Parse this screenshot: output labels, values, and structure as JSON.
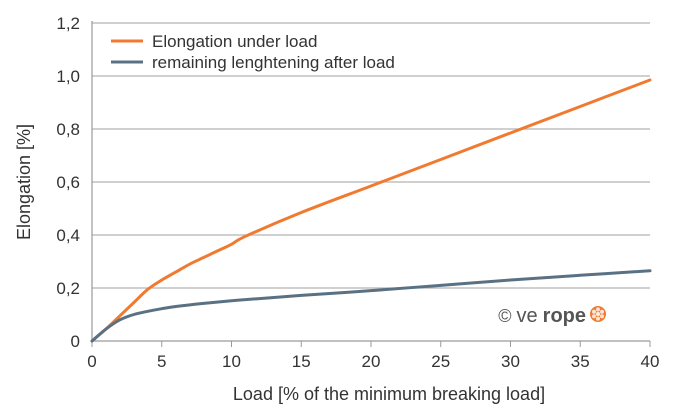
{
  "chart_data": {
    "type": "line",
    "title": "",
    "xlabel": "Load [% of the minimum breaking load]",
    "ylabel": "Elongation [%]",
    "xlim": [
      0,
      40
    ],
    "ylim": [
      0,
      1.2
    ],
    "x_ticks": [
      0,
      5,
      10,
      15,
      20,
      25,
      30,
      35,
      40
    ],
    "x_tick_labels": [
      "0",
      "5",
      "10",
      "15",
      "20",
      "25",
      "30",
      "35",
      "40"
    ],
    "y_ticks": [
      0,
      0.2,
      0.4,
      0.6,
      0.8,
      1.0,
      1.2
    ],
    "y_tick_labels": [
      "0",
      "0,2",
      "0,4",
      "0,6",
      "0,8",
      "1,0",
      "1,2"
    ],
    "grid": "horizontal",
    "legend_position": "top-left",
    "series": [
      {
        "name": "Elongation under load",
        "color": "#f07a30",
        "x": [
          0,
          1,
          2,
          3,
          4,
          5,
          6,
          7,
          8,
          9,
          10,
          11,
          15,
          20,
          25,
          30,
          35,
          40
        ],
        "y": [
          0,
          0.045,
          0.095,
          0.145,
          0.195,
          0.23,
          0.26,
          0.29,
          0.315,
          0.34,
          0.365,
          0.395,
          0.485,
          0.585,
          0.685,
          0.785,
          0.885,
          0.985
        ]
      },
      {
        "name": "remaining lenghtening after load",
        "color": "#5a7184",
        "x": [
          0,
          1,
          2,
          3,
          4,
          5,
          6,
          8,
          10,
          12,
          15,
          20,
          25,
          30,
          35,
          40
        ],
        "y": [
          0,
          0.045,
          0.08,
          0.1,
          0.112,
          0.122,
          0.13,
          0.142,
          0.152,
          0.16,
          0.172,
          0.19,
          0.21,
          0.23,
          0.248,
          0.265
        ]
      }
    ],
    "watermark": {
      "copyright": "©",
      "brand_light": "ve",
      "brand_bold": "rope"
    }
  },
  "colors": {
    "grid": "#b3b3b3",
    "axis": "#9a9a9a",
    "text": "#333333",
    "brand_text": "#555555",
    "brand_accent": "#f07a30"
  }
}
